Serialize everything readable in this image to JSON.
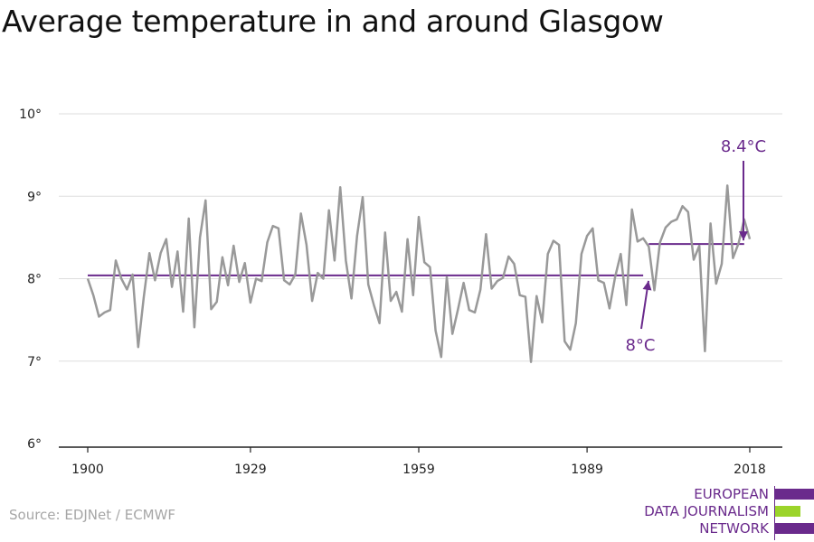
{
  "title": "Average temperature in and around Glasgow",
  "source": "Source: EDJNet / ECMWF",
  "logo": {
    "lines": [
      "EUROPEAN",
      "DATA JOURNALISM",
      "NETWORK"
    ],
    "bar_colors": [
      "#6a2a8c",
      "#9bd42a",
      "#6a2a8c"
    ]
  },
  "colors": {
    "series": "#999999",
    "average": "#6a2a8c",
    "grid": "#dddddd",
    "axis": "#222222"
  },
  "chart_data": {
    "type": "line",
    "title": "Average temperature in and around Glasgow",
    "x_ticks": [
      1900,
      1929,
      1959,
      1989,
      2018
    ],
    "y_ticks": [
      6,
      7,
      8,
      9,
      10
    ],
    "y_tick_labels": [
      "6°",
      "7°",
      "8°",
      "9°",
      "10°"
    ],
    "xlim": [
      1900,
      2018
    ],
    "ylim": [
      6,
      10
    ],
    "grid": true,
    "series": [
      {
        "x_start": 1900,
        "x_step": 1,
        "values": [
          8.0,
          7.8,
          7.54,
          7.59,
          7.62,
          8.22,
          8.0,
          7.87,
          8.05,
          7.17,
          7.78,
          8.31,
          7.98,
          8.31,
          8.48,
          7.9,
          8.33,
          7.6,
          8.73,
          7.41,
          8.5,
          8.95,
          7.63,
          7.72,
          8.26,
          7.92,
          8.4,
          7.96,
          8.19,
          7.71,
          8.0,
          7.97,
          8.44,
          8.64,
          8.61,
          7.98,
          7.93,
          8.05,
          8.79,
          8.41,
          7.73,
          8.07,
          8.0,
          8.83,
          8.22,
          9.11,
          8.22,
          7.76,
          8.52,
          8.99,
          7.93,
          7.68,
          7.46,
          8.56,
          7.73,
          7.84,
          7.6,
          8.48,
          7.8,
          8.75,
          8.2,
          8.14,
          7.37,
          7.05,
          8.02,
          7.33,
          7.63,
          7.95,
          7.62,
          7.59,
          7.87,
          8.54,
          7.88,
          7.97,
          8.01,
          8.27,
          8.18,
          7.8,
          7.78,
          6.99,
          7.79,
          7.47,
          8.3,
          8.46,
          8.41,
          7.24,
          7.14,
          7.46,
          8.3,
          8.52,
          8.61,
          7.98,
          7.95,
          7.64,
          8.02,
          8.3,
          7.68,
          8.84,
          8.45,
          8.49,
          8.39,
          7.86,
          8.44,
          8.62,
          8.69,
          8.72,
          8.88,
          8.81,
          8.23,
          8.4,
          7.12,
          8.67,
          7.94,
          8.18,
          9.13,
          8.25,
          8.43,
          8.72,
          8.48
        ]
      }
    ],
    "average_lines": [
      {
        "label": "8°C",
        "value": 8.04,
        "x_from": 1900,
        "x_to": 1999
      },
      {
        "label": "8.4°C",
        "value": 8.42,
        "x_from": 2000,
        "x_to": 2017
      }
    ]
  }
}
